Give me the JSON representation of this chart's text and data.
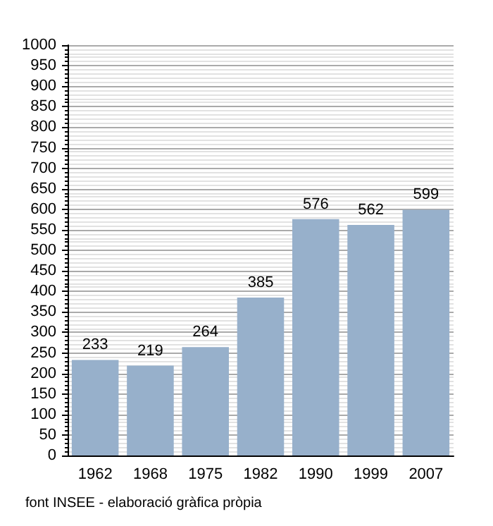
{
  "chart_data": {
    "type": "bar",
    "categories": [
      "1962",
      "1968",
      "1975",
      "1982",
      "1990",
      "1999",
      "2007"
    ],
    "values": [
      233,
      219,
      264,
      385,
      576,
      562,
      599
    ],
    "color": "#97b0cb",
    "data_labels": true,
    "ylim": [
      0,
      1000
    ],
    "yticks": [
      0,
      50,
      100,
      150,
      200,
      250,
      300,
      350,
      400,
      450,
      500,
      550,
      600,
      650,
      700,
      750,
      800,
      850,
      900,
      950,
      1000
    ],
    "grid": "y",
    "annotations": [
      "font INSEE - elaboració gràfica pròpia"
    ]
  }
}
